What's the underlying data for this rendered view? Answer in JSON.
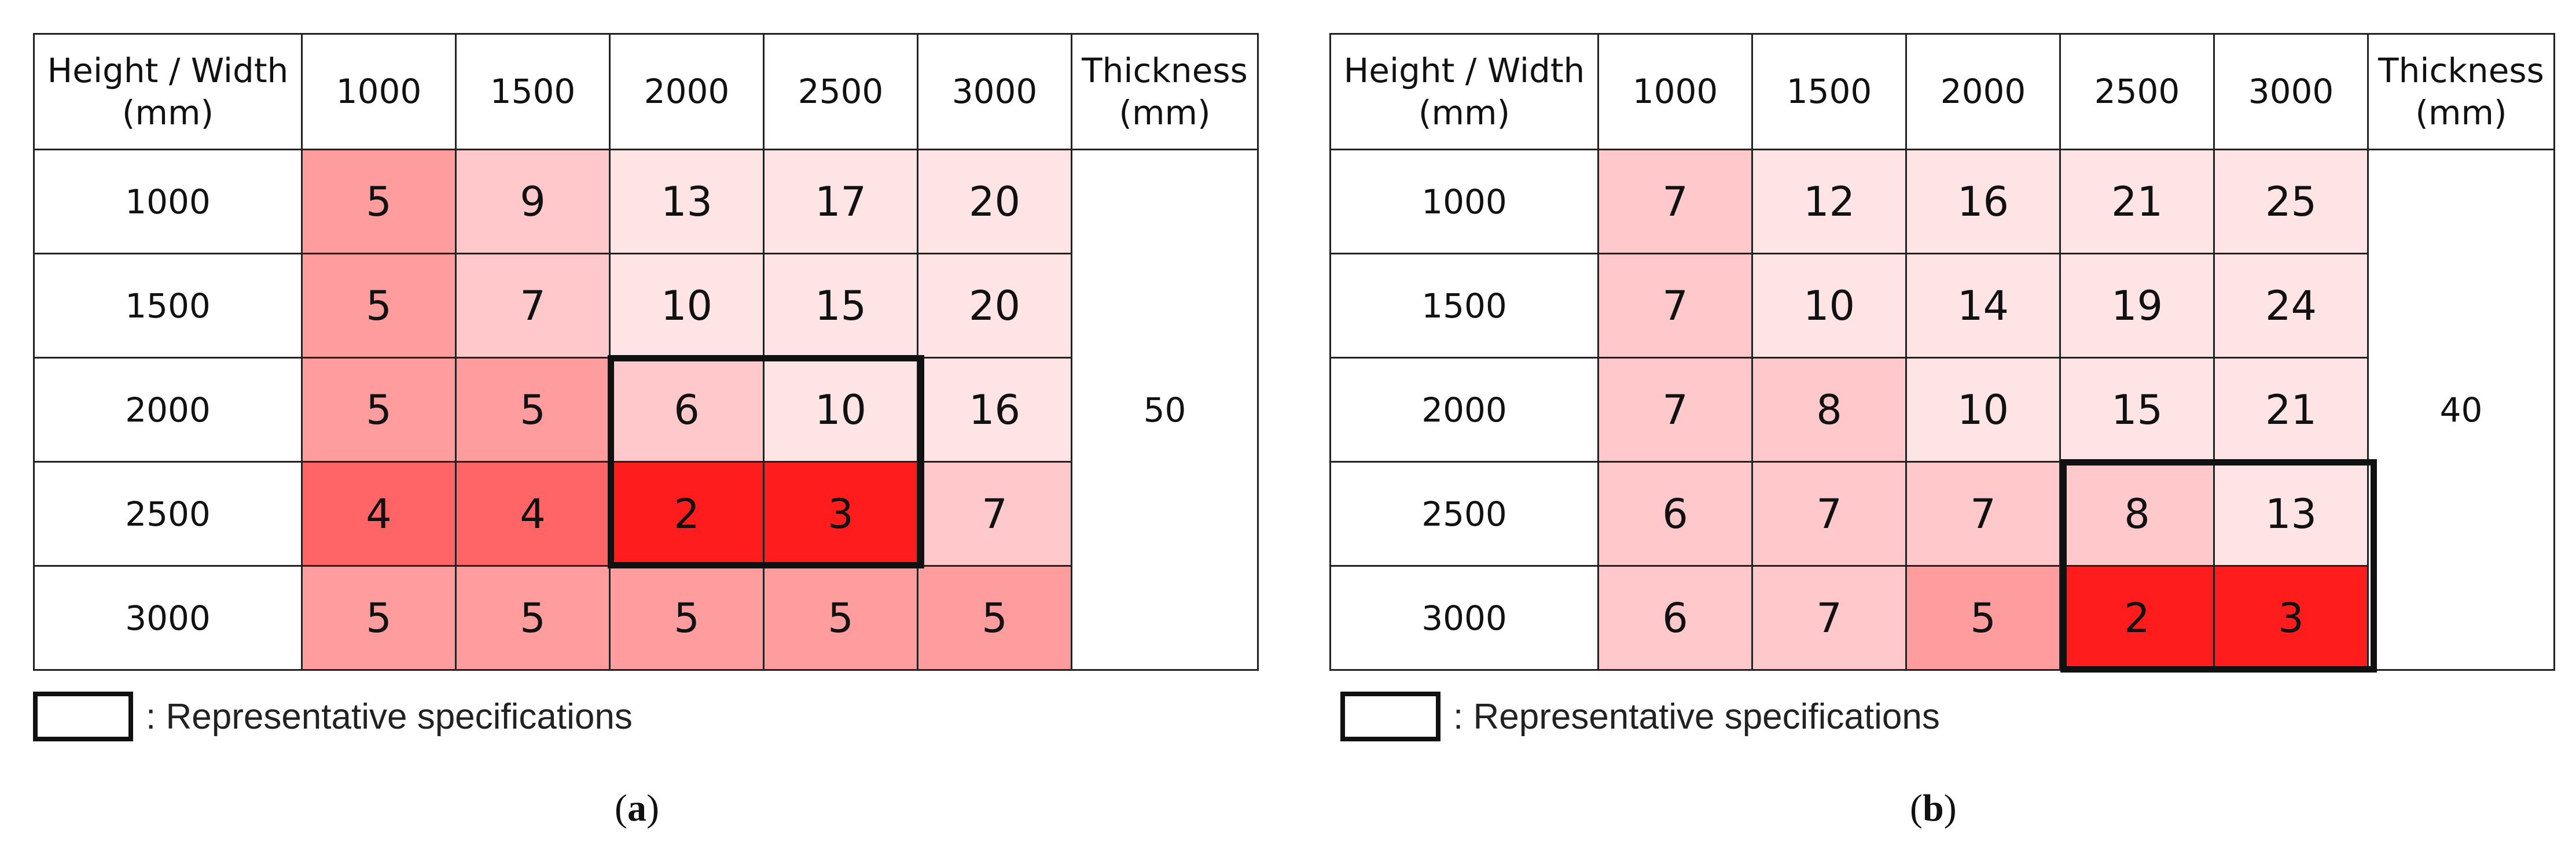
{
  "colors": {
    "0": "#ffffff",
    "1": "#ffe4e6",
    "2": "#ffc8ca",
    "3": "#ff9c9e",
    "4": "#ff6466",
    "5": "#ff1c1c"
  },
  "panels": [
    {
      "label_letter": "a",
      "header": {
        "corner": "Height / Width\n(mm)",
        "thickness": "Thickness\n(mm)",
        "widths": [
          "1000",
          "1500",
          "2000",
          "2500",
          "3000"
        ]
      },
      "thickness_value": "50",
      "rows": [
        {
          "height": "1000",
          "values": [
            "5",
            "9",
            "13",
            "17",
            "20"
          ],
          "shade": [
            3,
            2,
            1,
            1,
            1
          ]
        },
        {
          "height": "1500",
          "values": [
            "5",
            "7",
            "10",
            "15",
            "20"
          ],
          "shade": [
            3,
            2,
            1,
            1,
            1
          ]
        },
        {
          "height": "2000",
          "values": [
            "5",
            "5",
            "6",
            "10",
            "16"
          ],
          "shade": [
            3,
            3,
            2,
            1,
            1
          ]
        },
        {
          "height": "2500",
          "values": [
            "4",
            "4",
            "2",
            "3",
            "7"
          ],
          "shade": [
            4,
            4,
            5,
            5,
            2
          ]
        },
        {
          "height": "3000",
          "values": [
            "5",
            "5",
            "5",
            "5",
            "5"
          ],
          "shade": [
            3,
            3,
            3,
            3,
            3
          ]
        }
      ],
      "legend_text": ": Representative specifications"
    },
    {
      "label_letter": "b",
      "header": {
        "corner": "Height / Width\n(mm)",
        "thickness": "Thickness\n(mm)",
        "widths": [
          "1000",
          "1500",
          "2000",
          "2500",
          "3000"
        ]
      },
      "thickness_value": "40",
      "rows": [
        {
          "height": "1000",
          "values": [
            "7",
            "12",
            "16",
            "21",
            "25"
          ],
          "shade": [
            2,
            1,
            1,
            1,
            1
          ]
        },
        {
          "height": "1500",
          "values": [
            "7",
            "10",
            "14",
            "19",
            "24"
          ],
          "shade": [
            2,
            1,
            1,
            1,
            1
          ]
        },
        {
          "height": "2000",
          "values": [
            "7",
            "8",
            "10",
            "15",
            "21"
          ],
          "shade": [
            2,
            2,
            1,
            1,
            1
          ]
        },
        {
          "height": "2500",
          "values": [
            "6",
            "7",
            "7",
            "8",
            "13"
          ],
          "shade": [
            2,
            2,
            2,
            2,
            1
          ]
        },
        {
          "height": "3000",
          "values": [
            "6",
            "7",
            "5",
            "2",
            "3"
          ],
          "shade": [
            2,
            2,
            3,
            5,
            5
          ]
        }
      ],
      "legend_text": ": Representative specifications"
    }
  ]
}
